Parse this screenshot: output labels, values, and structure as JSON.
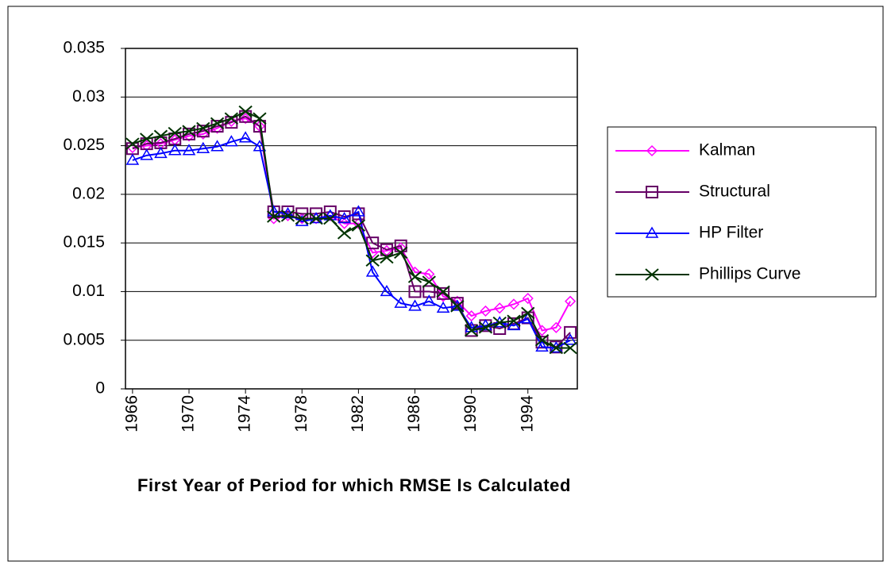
{
  "chart_data": {
    "type": "line",
    "x_label": "First Year of Period for which RMSE Is Calculated",
    "x": [
      1966,
      1967,
      1968,
      1969,
      1970,
      1971,
      1972,
      1973,
      1974,
      1975,
      1976,
      1977,
      1978,
      1979,
      1980,
      1981,
      1982,
      1983,
      1984,
      1985,
      1986,
      1987,
      1988,
      1989,
      1990,
      1991,
      1992,
      1993,
      1994,
      1995,
      1996,
      1997
    ],
    "xlim": [
      1965.5,
      1997.5
    ],
    "xticks": [
      1966,
      1970,
      1974,
      1978,
      1982,
      1986,
      1990,
      1994
    ],
    "ylim": [
      0,
      0.035
    ],
    "yticks": [
      0,
      0.005,
      0.01,
      0.015,
      0.02,
      0.025,
      0.03,
      0.035
    ],
    "grid": true,
    "legend": "right",
    "series": [
      {
        "name": "Kalman",
        "color": "#ff00ff",
        "marker": "diamond",
        "values": [
          0.0248,
          0.025,
          0.0252,
          0.0256,
          0.026,
          0.0262,
          0.0268,
          0.0275,
          0.0278,
          0.027,
          0.0175,
          0.0178,
          0.0175,
          0.0175,
          0.0178,
          0.017,
          0.017,
          0.014,
          0.0142,
          0.0145,
          0.012,
          0.0118,
          0.0095,
          0.009,
          0.0075,
          0.008,
          0.0083,
          0.0087,
          0.0093,
          0.006,
          0.0063,
          0.009
        ]
      },
      {
        "name": "Structural",
        "color": "#660066",
        "marker": "square",
        "values": [
          0.0247,
          0.0252,
          0.0253,
          0.0257,
          0.0262,
          0.0265,
          0.027,
          0.0274,
          0.028,
          0.027,
          0.0182,
          0.0182,
          0.018,
          0.018,
          0.0182,
          0.0177,
          0.018,
          0.015,
          0.0143,
          0.0147,
          0.01,
          0.01,
          0.0098,
          0.0088,
          0.006,
          0.0065,
          0.0062,
          0.0067,
          0.0073,
          0.0048,
          0.0043,
          0.0058
        ]
      },
      {
        "name": "HP Filter",
        "color": "#0000ff",
        "marker": "triangle",
        "values": [
          0.0235,
          0.024,
          0.0242,
          0.0245,
          0.0245,
          0.0247,
          0.0249,
          0.0254,
          0.0258,
          0.0249,
          0.0182,
          0.018,
          0.0172,
          0.0175,
          0.0178,
          0.0175,
          0.0182,
          0.012,
          0.01,
          0.0088,
          0.0085,
          0.009,
          0.0083,
          0.0085,
          0.0063,
          0.0065,
          0.0068,
          0.0065,
          0.0072,
          0.0043,
          0.0042,
          0.005
        ]
      },
      {
        "name": "Phillips Curve",
        "color": "#003300",
        "marker": "x",
        "values": [
          0.0252,
          0.0257,
          0.026,
          0.0263,
          0.0265,
          0.0268,
          0.0273,
          0.0278,
          0.0285,
          0.0278,
          0.0177,
          0.0178,
          0.0175,
          0.0175,
          0.0175,
          0.016,
          0.0168,
          0.0132,
          0.0135,
          0.014,
          0.0115,
          0.011,
          0.01,
          0.0085,
          0.006,
          0.0063,
          0.0068,
          0.007,
          0.0078,
          0.005,
          0.0042,
          0.0042
        ]
      }
    ]
  }
}
